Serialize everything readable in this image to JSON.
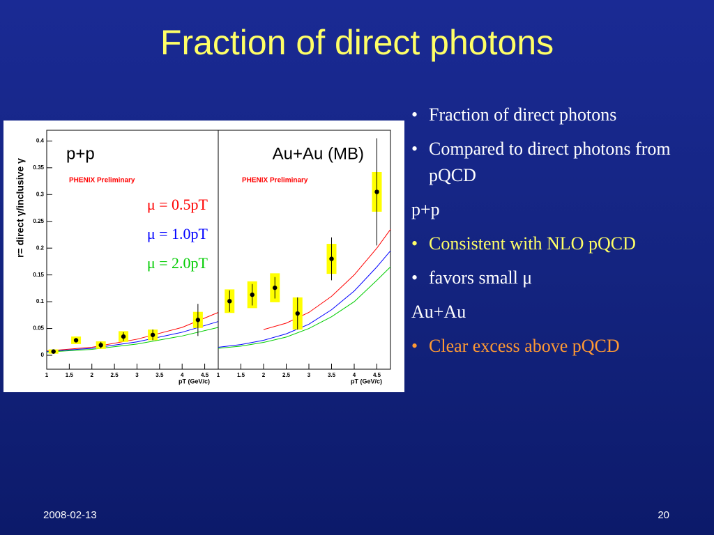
{
  "title": "Fraction of direct photons",
  "bullets": [
    {
      "text": "Fraction of direct photons",
      "bullet": true,
      "color": "#ffffff"
    },
    {
      "text": "Compared to direct photons from pQCD",
      "bullet": true,
      "color": "#ffffff"
    },
    {
      "text": "p+p",
      "bullet": false,
      "color": "#ffffff"
    },
    {
      "text": "Consistent with NLO pQCD",
      "bullet": true,
      "color": "#ffff66"
    },
    {
      "text": "favors small μ",
      "bullet": true,
      "color": "#ffffff"
    },
    {
      "text": "Au+Au",
      "bullet": false,
      "color": "#ffffff"
    },
    {
      "text": "Clear excess above pQCD",
      "bullet": true,
      "color": "#ff9933"
    }
  ],
  "footer": {
    "date": "2008-02-13",
    "page": "20"
  },
  "chart_data": [
    {
      "type": "scatter",
      "title": "p+p",
      "annotation": "PHENIX Preliminary",
      "y_label": "r= direct γ/inclusive γ",
      "x_label": "pT (GeV/c)",
      "x": [
        1.15,
        1.65,
        2.2,
        2.7,
        3.35,
        4.35
      ],
      "values": [
        0.007,
        0.028,
        0.019,
        0.035,
        0.038,
        0.066
      ],
      "errors": [
        0.004,
        0.004,
        0.006,
        0.008,
        0.01,
        0.03
      ],
      "systematic": [
        0.004,
        0.007,
        0.007,
        0.01,
        0.01,
        0.015
      ],
      "series": [
        {
          "name": "μ = 0.5pT",
          "color": "#ff0000",
          "x": [
            1,
            2,
            3,
            4,
            4.8
          ],
          "values": [
            0.008,
            0.015,
            0.03,
            0.052,
            0.08
          ]
        },
        {
          "name": "μ = 1.0pT",
          "color": "#0000ff",
          "x": [
            1,
            2,
            3,
            4,
            4.8
          ],
          "values": [
            0.007,
            0.013,
            0.025,
            0.043,
            0.063
          ]
        },
        {
          "name": "μ = 2.0pT",
          "color": "#00cc00",
          "x": [
            1,
            2,
            3,
            4,
            4.8
          ],
          "values": [
            0.006,
            0.011,
            0.021,
            0.036,
            0.052
          ]
        }
      ],
      "xlim": [
        1,
        4.8
      ],
      "ylim": [
        -0.026,
        0.42
      ],
      "xticks": [
        1,
        1.5,
        2,
        2.5,
        3,
        3.5,
        4,
        4.5
      ],
      "yticks": [
        0,
        0.05,
        0.1,
        0.15,
        0.2,
        0.25,
        0.3,
        0.35,
        0.4
      ]
    },
    {
      "type": "scatter",
      "title": "Au+Au (MB)",
      "annotation": "PHENIX Preliminary",
      "x_label": "pT (GeV/c)",
      "x": [
        1.25,
        1.75,
        2.25,
        2.75,
        3.5,
        4.5
      ],
      "values": [
        0.101,
        0.113,
        0.126,
        0.078,
        0.18,
        0.305
      ],
      "errors": [
        0.02,
        0.02,
        0.02,
        0.03,
        0.04,
        0.1
      ],
      "systematic": [
        0.022,
        0.025,
        0.027,
        0.03,
        0.028,
        0.037
      ],
      "series": [
        {
          "color": "#ff0000",
          "x": [
            2,
            2.5,
            3,
            3.5,
            4,
            4.5,
            4.8
          ],
          "values": [
            0.048,
            0.06,
            0.08,
            0.11,
            0.15,
            0.2,
            0.235
          ]
        },
        {
          "color": "#0000ff",
          "x": [
            1,
            1.5,
            2,
            2.5,
            3,
            3.5,
            4,
            4.5,
            4.8
          ],
          "values": [
            0.015,
            0.02,
            0.028,
            0.04,
            0.058,
            0.085,
            0.12,
            0.165,
            0.195
          ]
        },
        {
          "color": "#00cc00",
          "x": [
            1,
            1.5,
            2,
            2.5,
            3,
            3.5,
            4,
            4.5,
            4.8
          ],
          "values": [
            0.013,
            0.017,
            0.024,
            0.034,
            0.05,
            0.072,
            0.1,
            0.14,
            0.165
          ]
        }
      ],
      "xlim": [
        1,
        4.8
      ],
      "ylim": [
        -0.026,
        0.42
      ],
      "xticks": [
        1,
        1.5,
        2,
        2.5,
        3,
        3.5,
        4,
        4.5
      ]
    }
  ]
}
